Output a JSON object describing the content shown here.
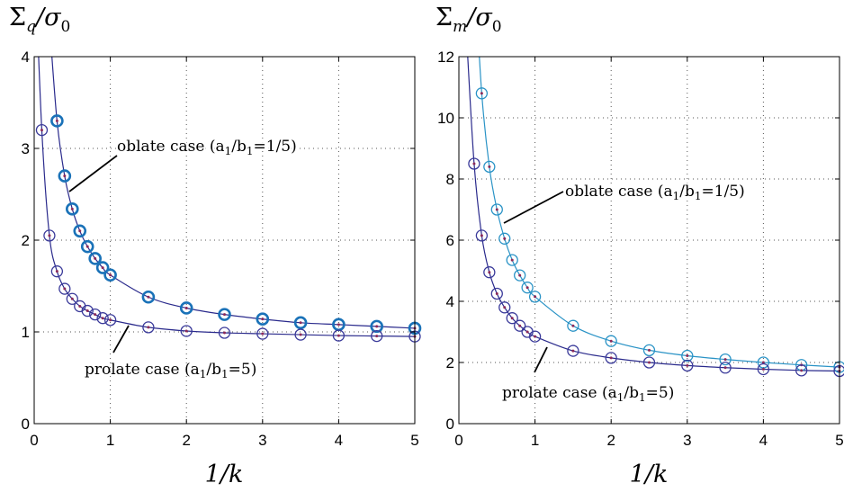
{
  "colors": {
    "axis": "#000000",
    "grid": "#555555",
    "oblate_marker": "#1a72b8",
    "prolate_marker": "#3a3a9a",
    "curve_left": "#2a2a8c",
    "curve_right_oblate": "#2a93c6",
    "curve_right_prolate": "#2a2a8c",
    "dot": "#8b2a5a"
  },
  "chart_data": [
    {
      "type": "line",
      "title": "",
      "ylabel": "Σq/σ0",
      "ylabel_main": "Σ",
      "ylabel_sub": "q",
      "ylabel_rest": "/σ",
      "ylabel_rest_sub": "0",
      "xlabel": "1/k",
      "xlim": [
        0,
        5
      ],
      "ylim": [
        0,
        4
      ],
      "xticks": [
        "0",
        "1",
        "2",
        "3",
        "4",
        "5"
      ],
      "yticks": [
        "0",
        "1",
        "2",
        "3",
        "4"
      ],
      "grid": true,
      "annotations": [
        {
          "text_pre": "oblate case (a",
          "sub1": "1",
          "mid": "/b",
          "sub2": "1",
          "post": "=1/5)"
        },
        {
          "text_pre": "prolate case (a",
          "sub1": "1",
          "mid": "/b",
          "sub2": "1",
          "post": "=5)"
        }
      ],
      "series": [
        {
          "key": "oblate",
          "x": [
            0.3,
            0.4,
            0.5,
            0.6,
            0.7,
            0.8,
            0.9,
            1.0,
            1.5,
            2.0,
            2.5,
            3.0,
            3.5,
            4.0,
            4.5,
            5.0
          ],
          "y": [
            3.3,
            2.7,
            2.34,
            2.1,
            1.93,
            1.8,
            1.7,
            1.62,
            1.38,
            1.26,
            1.19,
            1.14,
            1.1,
            1.08,
            1.06,
            1.04
          ]
        },
        {
          "key": "prolate",
          "x": [
            0.1,
            0.2,
            0.3,
            0.4,
            0.5,
            0.6,
            0.7,
            0.8,
            0.9,
            1.0,
            1.5,
            2.0,
            2.5,
            3.0,
            3.5,
            4.0,
            4.5,
            5.0
          ],
          "y": [
            3.2,
            2.05,
            1.66,
            1.47,
            1.36,
            1.28,
            1.23,
            1.19,
            1.15,
            1.13,
            1.05,
            1.01,
            0.99,
            0.98,
            0.97,
            0.96,
            0.955,
            0.95
          ]
        }
      ]
    },
    {
      "type": "line",
      "title": "",
      "ylabel": "Σm/σ0",
      "ylabel_main": "Σ",
      "ylabel_sub": "m",
      "ylabel_rest": "/σ",
      "ylabel_rest_sub": "0",
      "xlabel": "1/k",
      "xlim": [
        0,
        5
      ],
      "ylim": [
        0,
        12
      ],
      "xticks": [
        "0",
        "1",
        "2",
        "3",
        "4",
        "5"
      ],
      "yticks": [
        "0",
        "2",
        "4",
        "6",
        "8",
        "10",
        "12"
      ],
      "grid": true,
      "annotations": [
        {
          "text_pre": "oblate case (a",
          "sub1": "1",
          "mid": "/b",
          "sub2": "1",
          "post": "=1/5)"
        },
        {
          "text_pre": "prolate case (a",
          "sub1": "1",
          "mid": "/b",
          "sub2": "1",
          "post": "=5)"
        }
      ],
      "series": [
        {
          "key": "oblate",
          "x": [
            0.3,
            0.4,
            0.5,
            0.6,
            0.7,
            0.8,
            0.9,
            1.0,
            1.5,
            2.0,
            2.5,
            3.0,
            3.5,
            4.0,
            4.5,
            5.0
          ],
          "y": [
            10.8,
            8.4,
            7.0,
            6.05,
            5.35,
            4.85,
            4.45,
            4.15,
            3.2,
            2.7,
            2.4,
            2.22,
            2.1,
            2.0,
            1.92,
            1.85
          ]
        },
        {
          "key": "prolate",
          "x": [
            0.2,
            0.3,
            0.4,
            0.5,
            0.6,
            0.7,
            0.8,
            0.9,
            1.0,
            1.5,
            2.0,
            2.5,
            3.0,
            3.5,
            4.0,
            4.5,
            5.0
          ],
          "y": [
            8.5,
            6.15,
            4.95,
            4.25,
            3.8,
            3.45,
            3.2,
            3.0,
            2.85,
            2.38,
            2.15,
            2.0,
            1.9,
            1.83,
            1.78,
            1.74,
            1.72
          ]
        }
      ]
    }
  ]
}
